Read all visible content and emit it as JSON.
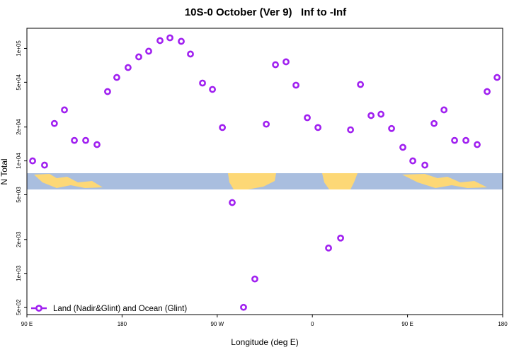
{
  "chart_data": {
    "type": "scatter",
    "title": "10S-0 October (Ver 9)   Inf to -Inf",
    "x_label": "Longitude (deg E)",
    "y_label": "N Total",
    "log_y": true,
    "legend_position": "bottom-left",
    "xlim": [
      90,
      540
    ],
    "xticks": [
      {
        "value": 90,
        "label": "90 E"
      },
      {
        "value": 180,
        "label": "180"
      },
      {
        "value": 270,
        "label": "90 W"
      },
      {
        "value": 360,
        "label": "0"
      },
      {
        "value": 450,
        "label": "90 E"
      },
      {
        "value": 540,
        "label": "180"
      }
    ],
    "ylim": [
      430,
      151000
    ],
    "yticks": [
      {
        "value": 500,
        "label": "5e+02"
      },
      {
        "value": 1000,
        "label": "1e+03"
      },
      {
        "value": 2000,
        "label": "2e+03"
      },
      {
        "value": 5000,
        "label": "5e+03"
      },
      {
        "value": 10000,
        "label": "1e+04"
      },
      {
        "value": 20000,
        "label": "2e+04"
      },
      {
        "value": 50000,
        "label": "5e+04"
      },
      {
        "value": 100000,
        "label": "1e+05"
      }
    ],
    "series": [
      {
        "name": "Land (Nadir&Glint) and Ocean (Glint)",
        "color": "#a020f0",
        "x": [
          95.4,
          106.7,
          116,
          125.5,
          134.9,
          145.6,
          156.3,
          166.3,
          175,
          185.7,
          195.8,
          205.2,
          215.9,
          225.3,
          236,
          244.7,
          256.1,
          265.5,
          274.9,
          284.2,
          294.9,
          305.6,
          316.4,
          325.1,
          335.1,
          344.5,
          355.2,
          365.3,
          375.3,
          386.7,
          396.1,
          405.5,
          415.5,
          424.9,
          434.9,
          445.6,
          455,
          466.4,
          475.1,
          484.5,
          494.5,
          505.2,
          515.9,
          525.3,
          534.7
        ],
        "values": [
          10000,
          9170,
          21500,
          28400,
          15200,
          15200,
          13960,
          41300,
          55200,
          67600,
          84100,
          94400,
          117300,
          124200,
          115600,
          89100,
          49200,
          43200,
          19800,
          4260,
          499,
          891,
          21200,
          71600,
          76000,
          47100,
          24200,
          19800,
          1680,
          2060,
          18900,
          47800,
          25300,
          26000,
          19400,
          13200,
          10000,
          9170,
          21500,
          28400,
          15200,
          15200,
          13960,
          41300,
          55200
        ]
      }
    ]
  }
}
